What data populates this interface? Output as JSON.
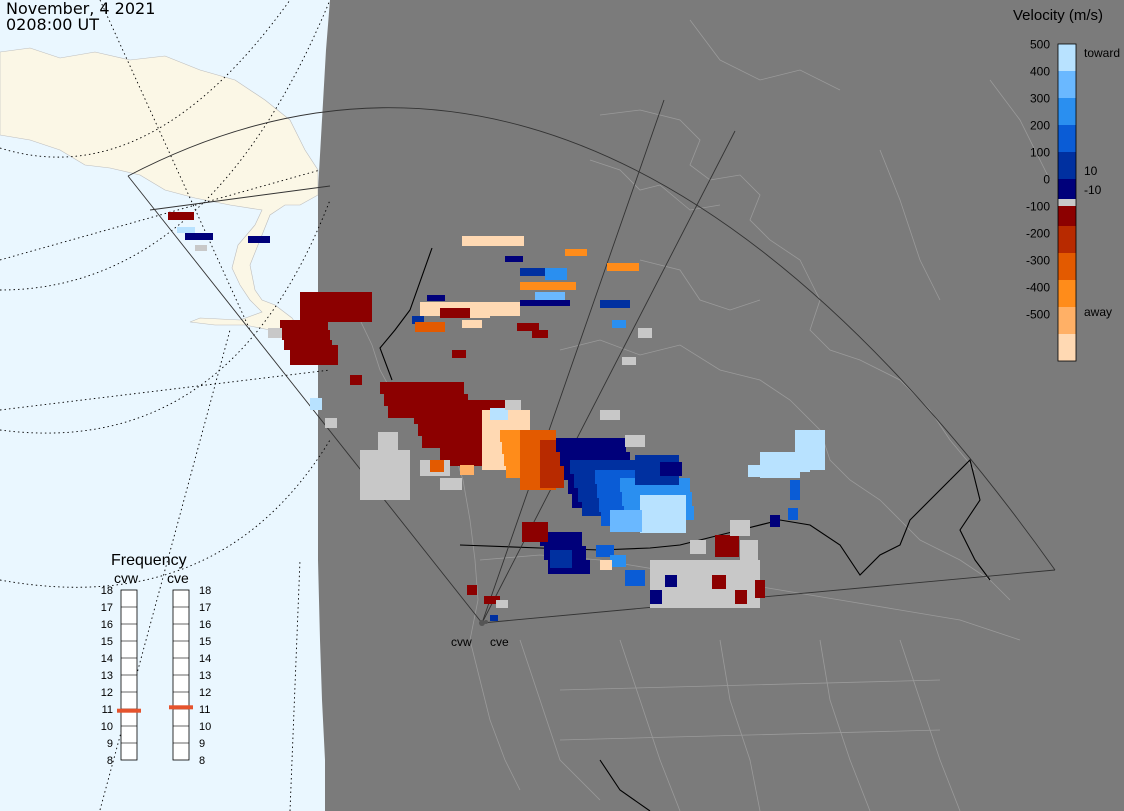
{
  "header": {
    "date": "November, 4 2021",
    "time": "0208:00 UT"
  },
  "colorbar": {
    "title": "Velocity (m/s)",
    "ticks": [
      "500",
      "400",
      "300",
      "200",
      "100",
      "0",
      "-100",
      "-200",
      "-300",
      "-400",
      "-500"
    ],
    "toward_label": "toward",
    "away_label": "away",
    "near_zero_pos": "10",
    "near_zero_neg": "-10",
    "colors": [
      "#ffd9b3",
      "#ffb066",
      "#ff8c1a",
      "#e35a00",
      "#b82a00",
      "#8c0000",
      "#c8c8c8",
      "#00007a",
      "#0030a0",
      "#0a5cd6",
      "#2a8ff0",
      "#6ab8ff",
      "#b8e2ff"
    ]
  },
  "frequency": {
    "title": "Frequency",
    "radar_1": "cvw",
    "radar_2": "cve",
    "ticks": [
      "18",
      "17",
      "16",
      "15",
      "14",
      "13",
      "12",
      "11",
      "10",
      "9",
      "8"
    ],
    "cvw_mhz": 10.9,
    "cve_mhz": 11.1,
    "marker_color": "#e5532d"
  },
  "map_labels": {
    "radar_1": "cvw",
    "radar_2": "cve"
  },
  "colors": {
    "ocean": "#eaf7ff",
    "land_sunlit": "#fbf7e6",
    "night_shade": "#7b7b7b",
    "ground_scatter": "#c8c8c8"
  }
}
